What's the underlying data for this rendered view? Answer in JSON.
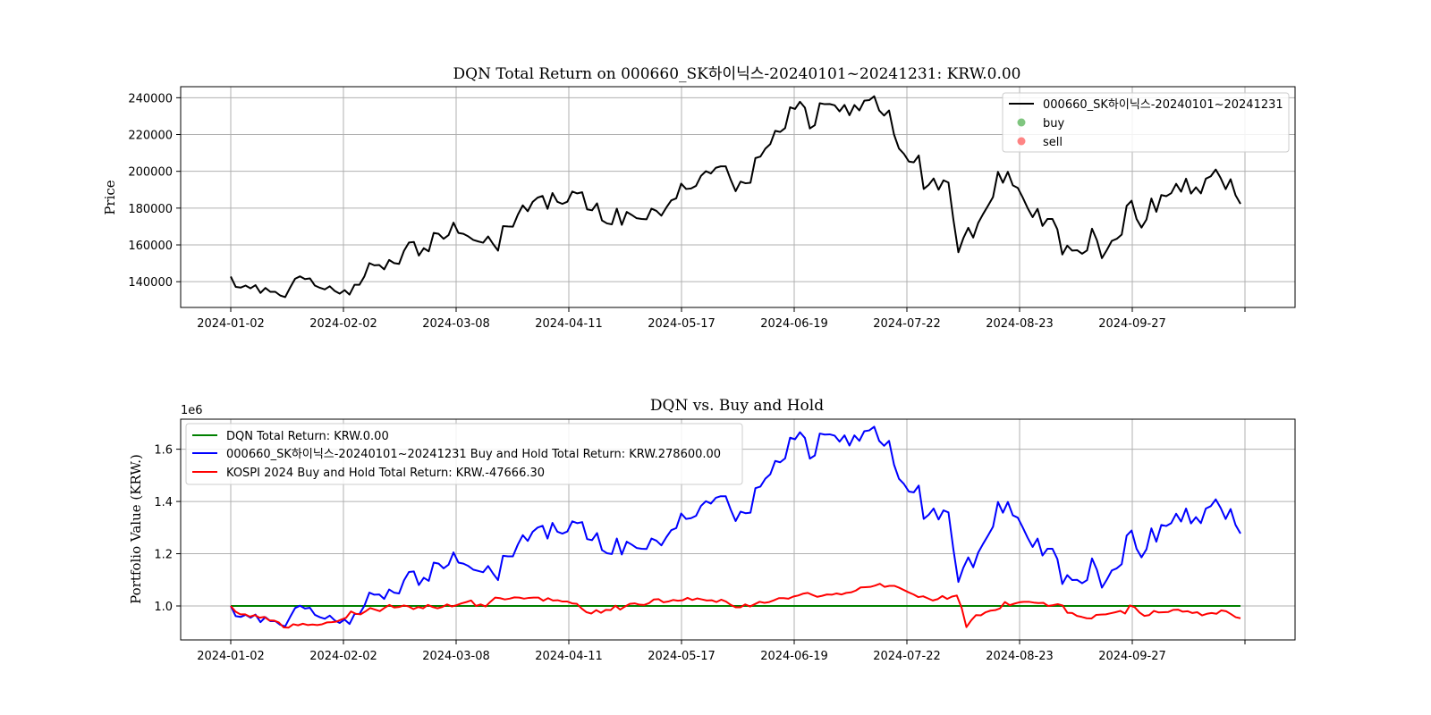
{
  "chart_data": [
    {
      "type": "line",
      "title": "DQN Total Return on 000660_SK하이닉스-20240101~20241231: KRW.0.00",
      "xlabel": "",
      "ylabel": "Price",
      "x_tick_labels": [
        "2024-01-02",
        "2024-02-02",
        "2024-03-08",
        "2024-04-11",
        "2024-05-17",
        "2024-06-19",
        "2024-07-22",
        "2024-08-23",
        "2024-09-27",
        ""
      ],
      "y_ticks": [
        140000,
        160000,
        180000,
        200000,
        220000,
        240000
      ],
      "ylim": [
        126000,
        246000
      ],
      "grid": true,
      "legend_position": "upper right",
      "legend": [
        "000660_SK하이닉스-20240101~20241231",
        "buy",
        "sell"
      ],
      "series": [
        {
          "name": "000660_SK하이닉스-20240101~20241231",
          "color": "#000000",
          "values": [
            142800,
            137200,
            136800,
            137900,
            136400,
            138100,
            133900,
            136600,
            134500,
            134500,
            132500,
            131600,
            136800,
            141600,
            142900,
            141400,
            141800,
            137900,
            136700,
            135800,
            137500,
            135000,
            133500,
            135400,
            133000,
            138300,
            138300,
            142900,
            150100,
            148900,
            149100,
            146700,
            151800,
            150100,
            149700,
            156800,
            161300,
            161600,
            154200,
            158200,
            156500,
            166500,
            166000,
            163300,
            165300,
            172100,
            166500,
            166000,
            164600,
            162700,
            161900,
            161200,
            164600,
            160500,
            156900,
            170200,
            170000,
            169900,
            176400,
            181500,
            178300,
            183400,
            185700,
            186600,
            179600,
            188200,
            183400,
            182300,
            183500,
            189000,
            188000,
            188600,
            179300,
            178800,
            182600,
            173300,
            171700,
            171200,
            179700,
            170900,
            177900,
            176300,
            174500,
            174100,
            173900,
            179700,
            178500,
            175900,
            180300,
            184200,
            185300,
            193300,
            190400,
            190700,
            192100,
            197500,
            200100,
            198800,
            201900,
            202700,
            202700,
            195500,
            189200,
            194400,
            193500,
            193800,
            207200,
            208000,
            212300,
            214800,
            222000,
            221400,
            223500,
            234800,
            233900,
            237800,
            234600,
            223300,
            225100,
            237000,
            236500,
            236600,
            235900,
            232600,
            236100,
            230500,
            236000,
            233100,
            238400,
            238700,
            240800,
            233100,
            230300,
            233100,
            220000,
            212400,
            209500,
            205300,
            204900,
            208600,
            190400,
            192600,
            196100,
            190000,
            195100,
            193900,
            173700,
            156000,
            163600,
            169300,
            164000,
            171900,
            176800,
            181300,
            186000,
            199700,
            193800,
            199700,
            192400,
            191000,
            185800,
            180000,
            175100,
            179600,
            170300,
            174100,
            174100,
            168500,
            154800,
            159600,
            156900,
            157100,
            155200,
            157000,
            168800,
            162500,
            152800,
            157200,
            162200,
            163300,
            165600,
            181200,
            184000,
            174100,
            169400,
            173800,
            185200,
            178000,
            187100,
            186500,
            188100,
            193200,
            188900,
            196000,
            187900,
            191300,
            188000,
            196000,
            197300,
            201000,
            196300,
            190300,
            195700,
            187000,
            182300
          ]
        }
      ],
      "buy_points": [],
      "sell_points": []
    },
    {
      "type": "line",
      "title": "DQN vs. Buy and Hold",
      "xlabel": "",
      "ylabel": "Portfolio Value (KRW.)",
      "y_offset_label": "1e6",
      "x_tick_labels": [
        "2024-01-02",
        "2024-02-02",
        "2024-03-08",
        "2024-04-11",
        "2024-05-17",
        "2024-06-19",
        "2024-07-22",
        "2024-08-23",
        "2024-09-27",
        ""
      ],
      "y_ticks": [
        1.0,
        1.2,
        1.4,
        1.6
      ],
      "y_tick_labels": [
        "1.0",
        "1.2",
        "1.4",
        "1.6"
      ],
      "ylim": [
        0.87,
        1.715
      ],
      "grid": true,
      "legend_position": "upper left",
      "legend": [
        "DQN Total Return: KRW.0.00",
        "000660_SK하이닉스-20240101~20241231 Buy and Hold Total Return: KRW.278600.00",
        "KOSPI 2024 Buy and Hold Total Return: KRW.-47666.30"
      ],
      "series": [
        {
          "name": "DQN Total Return: KRW.0.00",
          "color": "#008000",
          "values": [
            1.0,
            1.0
          ]
        },
        {
          "name": "000660_SK하이닉스-20240101~20241231 Buy and Hold Total Return: KRW.278600.00",
          "color": "#0000ff",
          "values": [
            1.0,
            0.961,
            0.958,
            0.966,
            0.955,
            0.967,
            0.938,
            0.957,
            0.942,
            0.942,
            0.928,
            0.922,
            0.958,
            0.992,
            1.001,
            0.99,
            0.993,
            0.966,
            0.957,
            0.951,
            0.963,
            0.945,
            0.935,
            0.948,
            0.931,
            0.969,
            0.969,
            1.001,
            1.051,
            1.043,
            1.044,
            1.027,
            1.063,
            1.051,
            1.048,
            1.098,
            1.13,
            1.132,
            1.08,
            1.108,
            1.096,
            1.166,
            1.162,
            1.144,
            1.158,
            1.205,
            1.166,
            1.162,
            1.153,
            1.139,
            1.134,
            1.129,
            1.153,
            1.124,
            1.099,
            1.192,
            1.19,
            1.19,
            1.235,
            1.271,
            1.249,
            1.284,
            1.3,
            1.307,
            1.258,
            1.318,
            1.284,
            1.277,
            1.285,
            1.324,
            1.317,
            1.321,
            1.256,
            1.252,
            1.279,
            1.214,
            1.202,
            1.199,
            1.258,
            1.197,
            1.246,
            1.235,
            1.222,
            1.219,
            1.218,
            1.258,
            1.25,
            1.232,
            1.263,
            1.29,
            1.298,
            1.354,
            1.333,
            1.336,
            1.345,
            1.383,
            1.401,
            1.392,
            1.414,
            1.42,
            1.42,
            1.369,
            1.325,
            1.361,
            1.355,
            1.357,
            1.451,
            1.457,
            1.487,
            1.504,
            1.555,
            1.55,
            1.565,
            1.644,
            1.638,
            1.665,
            1.643,
            1.564,
            1.576,
            1.66,
            1.656,
            1.657,
            1.652,
            1.629,
            1.653,
            1.614,
            1.653,
            1.632,
            1.669,
            1.672,
            1.686,
            1.632,
            1.613,
            1.632,
            1.541,
            1.487,
            1.467,
            1.438,
            1.435,
            1.461,
            1.333,
            1.349,
            1.373,
            1.331,
            1.366,
            1.358,
            1.216,
            1.092,
            1.146,
            1.186,
            1.148,
            1.204,
            1.238,
            1.27,
            1.303,
            1.398,
            1.357,
            1.398,
            1.347,
            1.338,
            1.301,
            1.261,
            1.226,
            1.258,
            1.193,
            1.219,
            1.219,
            1.18,
            1.084,
            1.118,
            1.099,
            1.1,
            1.087,
            1.099,
            1.182,
            1.138,
            1.07,
            1.101,
            1.136,
            1.144,
            1.16,
            1.269,
            1.289,
            1.219,
            1.186,
            1.217,
            1.297,
            1.246,
            1.31,
            1.306,
            1.317,
            1.353,
            1.323,
            1.373,
            1.316,
            1.34,
            1.317,
            1.373,
            1.382,
            1.408,
            1.375,
            1.333,
            1.371,
            1.31,
            1.277
          ]
        },
        {
          "name": "KOSPI 2024 Buy and Hold Total Return: KRW.-47666.30",
          "color": "#ff0000",
          "values": [
            1.0,
            0.978,
            0.968,
            0.968,
            0.959,
            0.965,
            0.955,
            0.958,
            0.945,
            0.944,
            0.937,
            0.918,
            0.917,
            0.93,
            0.926,
            0.932,
            0.927,
            0.929,
            0.927,
            0.93,
            0.937,
            0.938,
            0.94,
            0.948,
            0.955,
            0.979,
            0.97,
            0.968,
            0.979,
            0.992,
            0.986,
            0.98,
            0.993,
            1.004,
            0.994,
            0.996,
            1.002,
            0.998,
            0.988,
            0.996,
            0.991,
            1.004,
            0.996,
            0.991,
            0.996,
            1.006,
            0.998,
            1.003,
            1.01,
            1.015,
            1.021,
            1.0,
            1.006,
            0.998,
            1.016,
            1.032,
            1.03,
            1.025,
            1.028,
            1.033,
            1.032,
            1.028,
            1.031,
            1.032,
            1.032,
            1.02,
            1.03,
            1.021,
            1.022,
            1.017,
            1.017,
            1.01,
            1.008,
            0.99,
            0.976,
            0.971,
            0.984,
            0.974,
            0.985,
            0.984,
            1.001,
            0.986,
            0.998,
            1.008,
            1.01,
            1.005,
            1.004,
            1.011,
            1.025,
            1.026,
            1.014,
            1.017,
            1.023,
            1.02,
            1.022,
            1.031,
            1.023,
            1.029,
            1.025,
            1.021,
            1.022,
            1.015,
            1.024,
            1.017,
            1.004,
            0.995,
            0.995,
            1.006,
            0.998,
            1.007,
            1.016,
            1.012,
            1.015,
            1.022,
            1.03,
            1.03,
            1.028,
            1.036,
            1.04,
            1.047,
            1.05,
            1.042,
            1.035,
            1.039,
            1.044,
            1.043,
            1.048,
            1.044,
            1.05,
            1.052,
            1.059,
            1.071,
            1.072,
            1.073,
            1.078,
            1.085,
            1.073,
            1.077,
            1.077,
            1.07,
            1.061,
            1.052,
            1.044,
            1.034,
            1.037,
            1.029,
            1.021,
            1.026,
            1.038,
            1.027,
            1.036,
            1.04,
            0.993,
            0.919,
            0.945,
            0.965,
            0.964,
            0.976,
            0.982,
            0.984,
            0.991,
            1.015,
            1.003,
            1.009,
            1.014,
            1.016,
            1.016,
            1.013,
            1.011,
            1.012,
            1.0,
            1.003,
            1.007,
            1.002,
            0.974,
            0.973,
            0.962,
            0.958,
            0.953,
            0.952,
            0.966,
            0.967,
            0.968,
            0.972,
            0.976,
            0.981,
            0.971,
            1.002,
            0.995,
            0.975,
            0.962,
            0.965,
            0.981,
            0.975,
            0.976,
            0.977,
            0.985,
            0.986,
            0.978,
            0.98,
            0.973,
            0.976,
            0.964,
            0.97,
            0.973,
            0.97,
            0.983,
            0.98,
            0.969,
            0.957,
            0.953
          ]
        }
      ]
    }
  ]
}
